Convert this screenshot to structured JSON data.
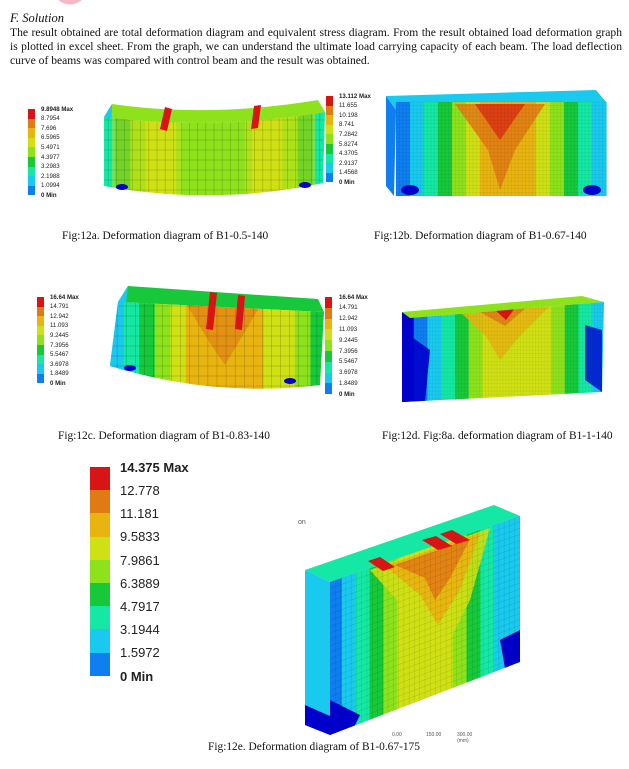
{
  "section": {
    "title": "F.  Solution",
    "paragraph": "The result obtained are total deformation diagram and equivalent stress diagram. From the result obtained load deformation graph is plotted in excel sheet. From the graph, we can understand the ultimate load carrying capacity of each beam. The load deflection curve of beams was compared with control beam and the result was obtained."
  },
  "palette": [
    "#0000cc",
    "#0e7ef0",
    "#19c9ee",
    "#14e8a4",
    "#17c83a",
    "#8de21c",
    "#cfe014",
    "#e8b410",
    "#e07a14",
    "#d81414"
  ],
  "figures": [
    {
      "id": "12a",
      "caption": "Fig:12a. Deformation diagram of B1-0.5-140",
      "legend": [
        "9.8948 Max",
        "8.7954",
        "7.696",
        "6.5965",
        "5.4971",
        "4.3977",
        "3.2983",
        "2.1988",
        "1.0994",
        "0 Min"
      ]
    },
    {
      "id": "12b",
      "caption": "Fig:12b. Deformation diagram of B1-0.67-140",
      "legend": [
        "13.112 Max",
        "11.655",
        "10.198",
        "8.741",
        "7.2842",
        "5.8274",
        "4.3705",
        "2.9137",
        "1.4568",
        "0 Min"
      ]
    },
    {
      "id": "12c",
      "caption": "Fig:12c. Deformation diagram of B1-0.83-140",
      "legend": [
        "16.64 Max",
        "14.791",
        "12.942",
        "11.093",
        "9.2445",
        "7.3956",
        "5.5467",
        "3.6978",
        "1.8489",
        "0 Min"
      ]
    },
    {
      "id": "12d",
      "caption": "Fig:12d. Fig:8a. deformation diagram of B1-1-140",
      "legend": [
        "16.64 Max",
        "14.791",
        "12.942",
        "11.093",
        "9.2445",
        "7.3956",
        "5.5467",
        "3.6978",
        "1.8489",
        "0 Min"
      ]
    },
    {
      "id": "12e",
      "caption": "Fig:12e. Deformation diagram of B1-0.67-175",
      "legend": [
        "14.375 Max",
        "12.778",
        "11.181",
        "9.5833",
        "7.9861",
        "6.3889",
        "4.7917",
        "3.1944",
        "1.5972",
        "0 Min"
      ],
      "scale_labels": [
        "0.00",
        "150.00",
        "300.00 (mm)"
      ],
      "stray_mark": "on"
    }
  ]
}
